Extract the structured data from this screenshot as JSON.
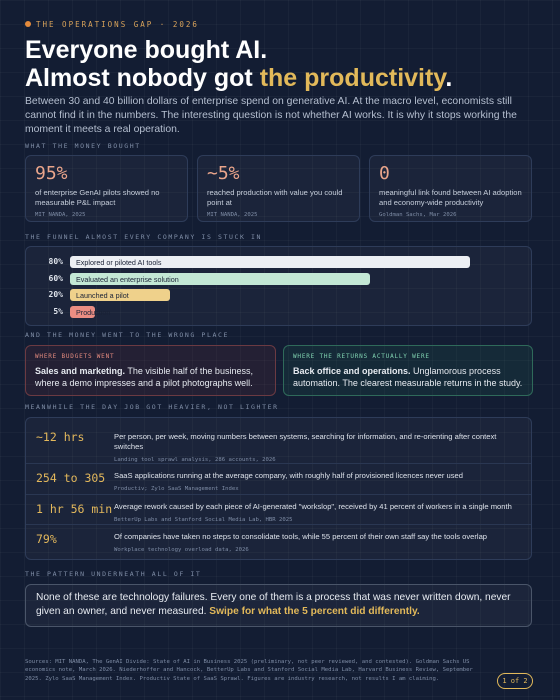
{
  "header": {
    "kicker": "THE OPERATIONS GAP · 2026",
    "title_line1": "Everyone bought AI.",
    "title_line2": "Almost nobody got ",
    "title_highlight": "the productivity",
    "title_end": ".",
    "intro": "Between 30 and 40 billion dollars of enterprise spend on generative AI. At the macro level, economists still cannot find it in the numbers. The interesting question is not whether AI works. It is why it stops working the moment it meets a real operation."
  },
  "sections": [
    "WHAT THE MONEY BOUGHT",
    "THE FUNNEL ALMOST EVERY COMPANY IS STUCK IN",
    "AND THE MONEY WENT TO THE WRONG PLACE",
    "MEANWHILE THE DAY JOB GOT HEAVIER, NOT LIGHTER",
    "THE PATTERN UNDERNEATH ALL OF IT"
  ],
  "stats": [
    {
      "figure": "95%",
      "text": "of enterprise GenAI pilots showed no measurable P&L impact",
      "source": "MIT NANDA, 2025"
    },
    {
      "figure": "~5%",
      "text": "reached production with value you could point at",
      "source": "MIT NANDA, 2025"
    },
    {
      "figure": "0",
      "text": "meaningful link found between AI adoption and economy-wide productivity",
      "source": "Goldman Sachs, Mar 2026"
    }
  ],
  "chart_data": {
    "type": "bar",
    "orientation": "horizontal",
    "categories": [
      "Explored or piloted AI tools",
      "Evaluated an enterprise solution",
      "Launched a pilot",
      "Production"
    ],
    "values": [
      80,
      60,
      20,
      5
    ],
    "value_labels": [
      "80%",
      "60%",
      "20%",
      "5%"
    ],
    "colors": [
      "#eceff3",
      "#c3e8d5",
      "#efd18b",
      "#ea8d83"
    ]
  },
  "money": [
    {
      "label": "WHERE BUDGETS WENT",
      "lead": "Sales and marketing.",
      "text": " The visible half of the business, where a demo impresses and a pilot photographs well."
    },
    {
      "label": "WHERE THE RETURNS ACTUALLY WERE",
      "lead": "Back office and operations.",
      "text": " Unglamorous process automation. The clearest measurable returns in the study."
    }
  ],
  "rows": [
    {
      "figure": "~12 hrs",
      "text": "Per person, per week, moving numbers between systems, searching for information, and re-orienting after context switches",
      "source": "Landing tool sprawl analysis, 286 accounts, 2026"
    },
    {
      "figure": "254 to 305",
      "text": "SaaS applications running at the average company, with roughly half of provisioned licences never used",
      "source": "Productiv; Zylo SaaS Management Index"
    },
    {
      "figure": "1 hr 56 min",
      "text": "Average rework caused by each piece of AI-generated \"workslop\", received by 41 percent of workers in a single month",
      "source": "BetterUp Labs and Stanford Social Media Lab, HBR 2025"
    },
    {
      "figure": "79%",
      "text": "Of companies have taken no steps to consolidate tools, while 55 percent of their own staff say the tools overlap",
      "source": "Workplace technology overload data, 2026"
    }
  ],
  "pattern": {
    "text": "None of these are technology failures. Every one of them is a process that was never written down, never given an owner, and never measured. ",
    "highlight": "Swipe for what the 5 percent did differently."
  },
  "sources": "Sources: MIT NANDA, The GenAI Divide: State of AI in Business 2025 (preliminary, not peer reviewed, and contested). Goldman Sachs US economics note, March 2026. Niederhoffer and Hancock, BetterUp Labs and Stanford Social Media Lab, Harvard Business Review, September 2025. Zylo SaaS Management Index. Productiv State of SaaS Sprawl. Figures are industry research, not results I am claiming.",
  "page": "1 of 2"
}
